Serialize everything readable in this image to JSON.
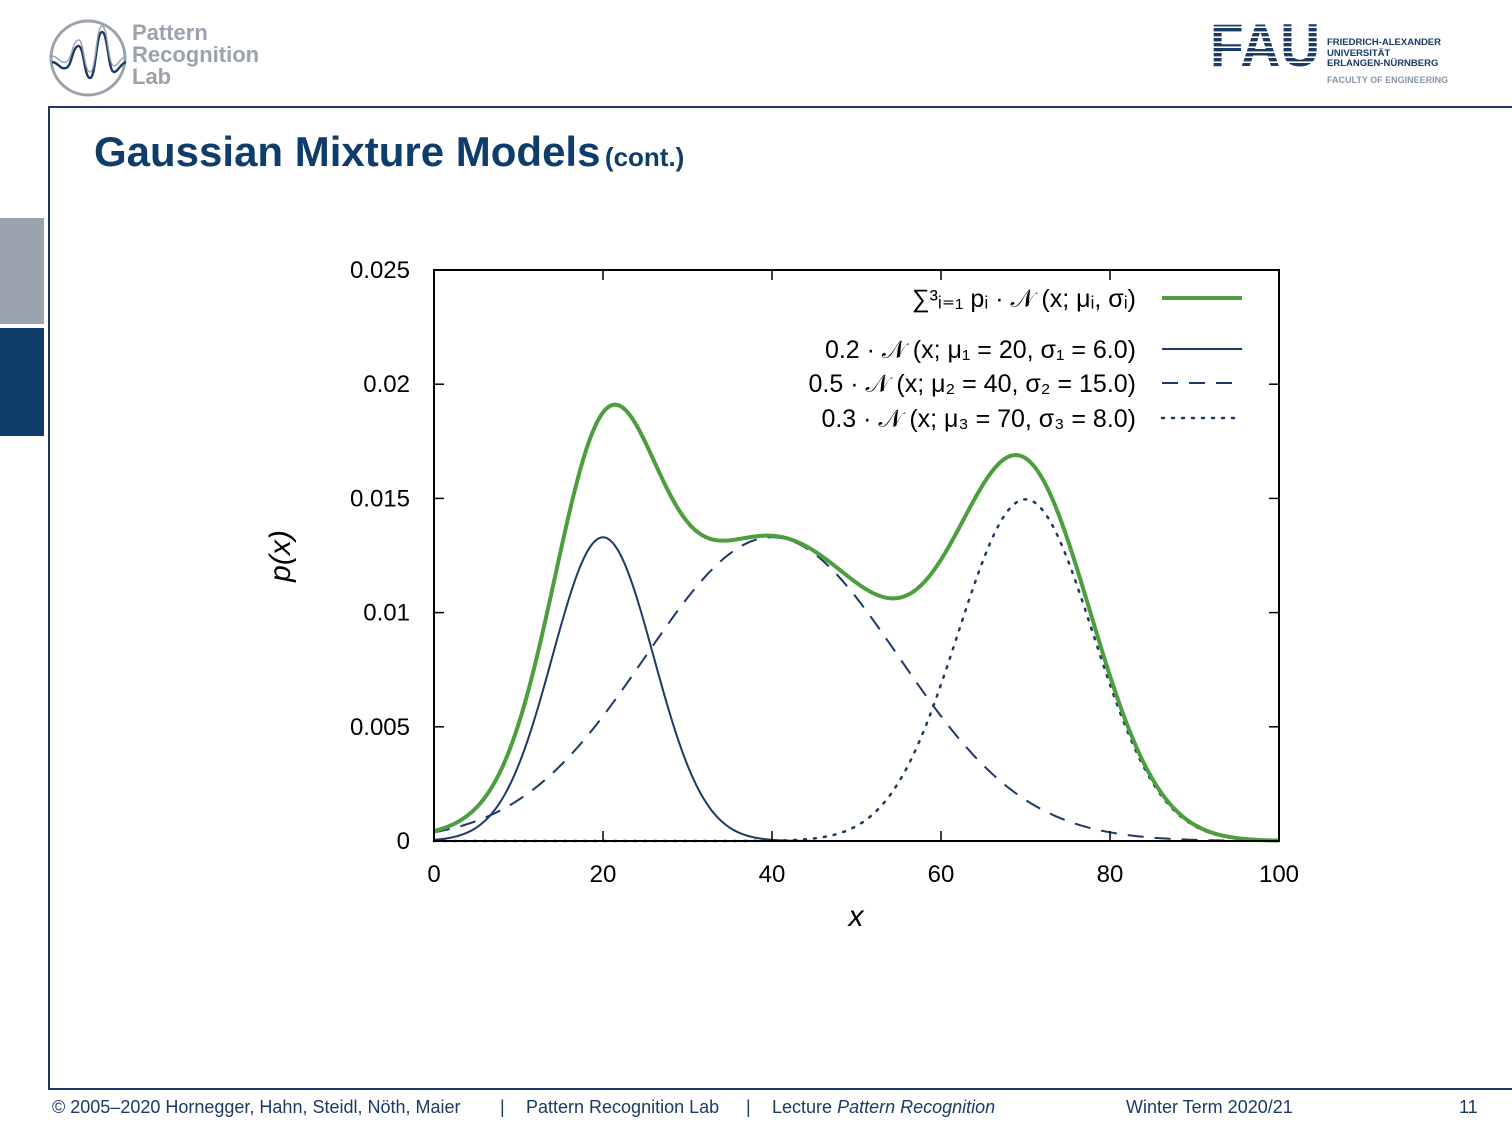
{
  "header": {
    "lab_logo_lines": [
      "Pattern",
      "Recognition",
      "Lab"
    ],
    "fau_logo": {
      "wordmark": "FAU",
      "lines": [
        "FRIEDRICH-ALEXANDER",
        "UNIVERSITÄT",
        "ERLANGEN-NÜRNBERG"
      ],
      "faculty": "FACULTY OF ENGINEERING"
    }
  },
  "slide": {
    "title": "Gaussian Mixture Models",
    "title_suffix": "(cont.)",
    "accent_color": "#0f3d6b"
  },
  "chart_data": {
    "type": "line",
    "xlabel": "x",
    "ylabel": "p(x)",
    "xlim": [
      0,
      100
    ],
    "ylim": [
      0,
      0.025
    ],
    "x_ticks": [
      "0",
      "20",
      "40",
      "60",
      "80",
      "100"
    ],
    "y_ticks": [
      "0",
      "0.005",
      "0.01",
      "0.015",
      "0.02",
      "0.025"
    ],
    "legend_position": "top-right",
    "series": [
      {
        "name": "∑³ᵢ₌₁ pᵢ · 𝒩 (x; μᵢ, σᵢ)",
        "color": "#4c9e3e",
        "style": "solid-thick",
        "components": [
          {
            "weight": 0.2,
            "mu": 20,
            "sigma": 6.0
          },
          {
            "weight": 0.5,
            "mu": 40,
            "sigma": 15.0
          },
          {
            "weight": 0.3,
            "mu": 70,
            "sigma": 8.0
          }
        ]
      },
      {
        "name": "0.2 · 𝒩 (x; μ₁ = 20, σ₁ =  6.0)",
        "color": "#1b3a66",
        "style": "solid",
        "weight": 0.2,
        "mu": 20,
        "sigma": 6.0
      },
      {
        "name": "0.5 · 𝒩 (x; μ₂ = 40, σ₂ = 15.0)",
        "color": "#1b3a66",
        "style": "dashed",
        "weight": 0.5,
        "mu": 40,
        "sigma": 15.0
      },
      {
        "name": "0.3 · 𝒩 (x; μ₃ = 70, σ₃ =  8.0)",
        "color": "#1b3a66",
        "style": "dotted",
        "weight": 0.3,
        "mu": 70,
        "sigma": 8.0
      }
    ]
  },
  "footer": {
    "copyright": "© 2005–2020 Hornegger, Hahn, Steidl, Nöth, Maier",
    "sep": "|",
    "lab": "Pattern Recognition Lab",
    "lecture_prefix": "Lecture",
    "lecture_name": "Pattern Recognition",
    "term": "Winter Term 2020/21",
    "page": "11"
  }
}
